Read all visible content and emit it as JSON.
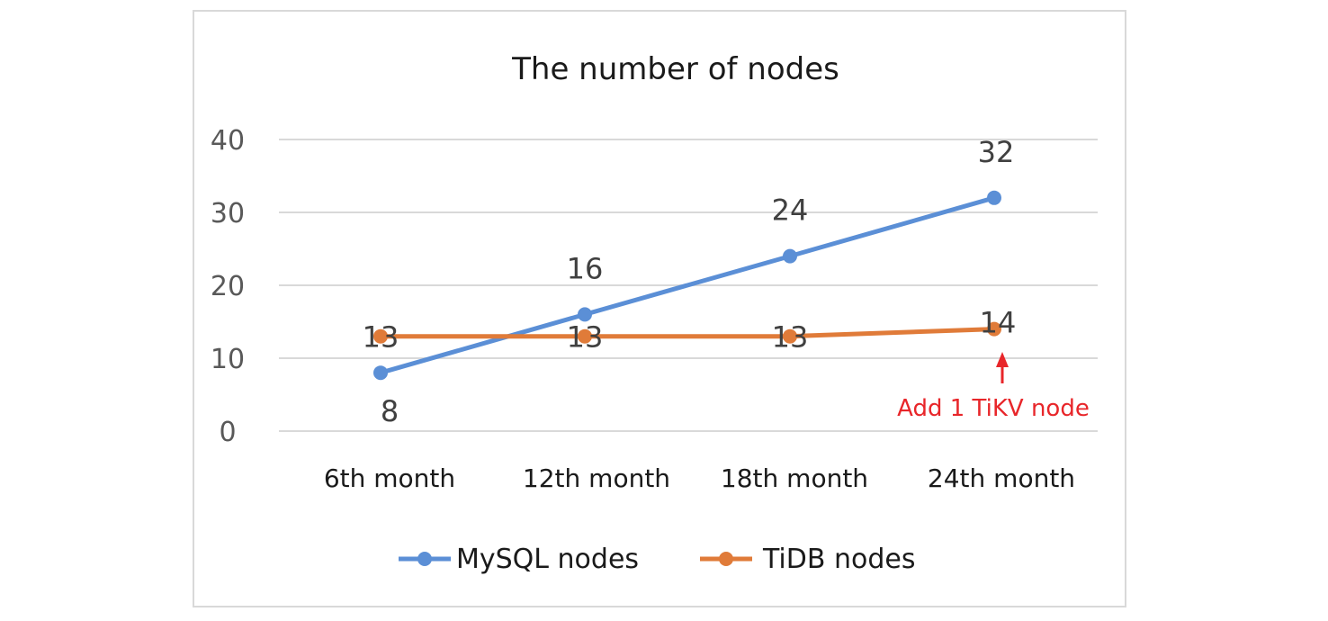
{
  "chart_data": {
    "type": "line",
    "title": "The number of nodes",
    "xlabel": "",
    "ylabel": "",
    "categories": [
      "6th month",
      "12th month",
      "18th month",
      "24th month"
    ],
    "ylim": [
      0,
      40
    ],
    "yticks": [
      0,
      10,
      20,
      30,
      40
    ],
    "grid": true,
    "legend": "bottom",
    "series": [
      {
        "name": "MySQL nodes",
        "values": [
          8,
          16,
          24,
          32
        ],
        "color": "#5b8fd6",
        "labels": [
          "8",
          "16",
          "24",
          "32"
        ]
      },
      {
        "name": "TiDB nodes",
        "values": [
          13,
          13,
          13,
          14
        ],
        "color": "#e07b39",
        "labels": [
          "13",
          "13",
          "13",
          "14"
        ]
      }
    ],
    "annotation": {
      "text": "Add 1 TiKV node",
      "category": "24th month",
      "color": "#e8262a"
    }
  }
}
